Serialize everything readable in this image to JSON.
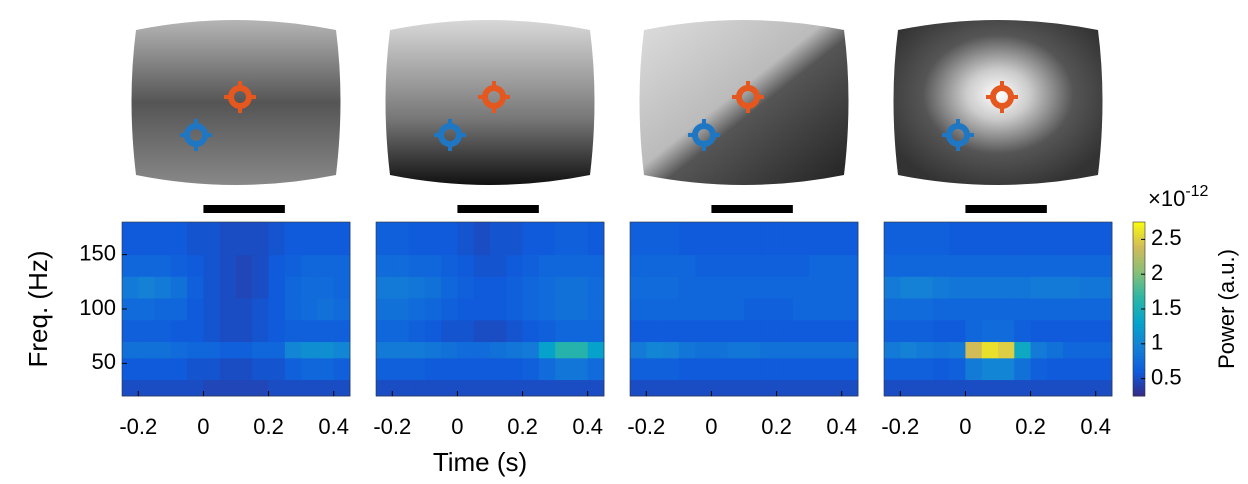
{
  "figure": {
    "xlabel": "Time (s)",
    "ylabel": "Freq. (Hz)"
  },
  "chart_data": [
    {
      "type": "heatmap",
      "xlim": [
        -0.25,
        0.45
      ],
      "ylim": [
        20,
        180
      ],
      "xticks": [
        -0.2,
        0,
        0.2,
        0.4
      ],
      "yticks": [
        50,
        100,
        150
      ],
      "x_edges": [
        -0.25,
        -0.2,
        -0.15,
        -0.1,
        -0.05,
        0,
        0.05,
        0.1,
        0.15,
        0.2,
        0.25,
        0.3,
        0.35,
        0.4,
        0.45
      ],
      "y_edges": [
        20,
        35,
        55,
        70,
        90,
        110,
        130,
        150,
        180
      ],
      "stimulus": [
        0,
        0.25
      ],
      "values": [
        [
          0.5,
          0.5,
          0.5,
          0.5,
          0.5,
          0.45,
          0.45,
          0.45,
          0.45,
          0.5,
          0.5,
          0.5,
          0.5,
          0.5
        ],
        [
          0.6,
          0.6,
          0.6,
          0.6,
          0.55,
          0.55,
          0.5,
          0.5,
          0.55,
          0.55,
          0.65,
          0.7,
          0.7,
          0.65
        ],
        [
          0.8,
          0.8,
          0.8,
          0.75,
          0.7,
          0.7,
          0.65,
          0.65,
          0.7,
          0.7,
          1.0,
          1.1,
          1.1,
          1.0
        ],
        [
          0.65,
          0.65,
          0.65,
          0.6,
          0.6,
          0.55,
          0.5,
          0.5,
          0.55,
          0.6,
          0.65,
          0.65,
          0.65,
          0.65
        ],
        [
          0.75,
          0.75,
          0.7,
          0.7,
          0.6,
          0.55,
          0.5,
          0.5,
          0.55,
          0.6,
          0.7,
          0.75,
          0.8,
          0.75
        ],
        [
          0.9,
          0.95,
          0.9,
          0.8,
          0.65,
          0.55,
          0.5,
          0.45,
          0.5,
          0.6,
          0.7,
          0.75,
          0.75,
          0.7
        ],
        [
          0.7,
          0.7,
          0.7,
          0.65,
          0.6,
          0.55,
          0.5,
          0.45,
          0.5,
          0.6,
          0.65,
          0.7,
          0.7,
          0.7
        ],
        [
          0.6,
          0.6,
          0.6,
          0.6,
          0.55,
          0.55,
          0.5,
          0.5,
          0.5,
          0.55,
          0.6,
          0.6,
          0.6,
          0.6
        ]
      ]
    },
    {
      "type": "heatmap",
      "xlim": [
        -0.25,
        0.45
      ],
      "ylim": [
        20,
        180
      ],
      "xticks": [
        -0.2,
        0,
        0.2,
        0.4
      ],
      "x_edges": [
        -0.25,
        -0.2,
        -0.15,
        -0.1,
        -0.05,
        0,
        0.05,
        0.1,
        0.15,
        0.2,
        0.25,
        0.3,
        0.35,
        0.4,
        0.45
      ],
      "y_edges": [
        20,
        35,
        55,
        70,
        90,
        110,
        130,
        150,
        180
      ],
      "stimulus": [
        0,
        0.25
      ],
      "values": [
        [
          0.5,
          0.5,
          0.5,
          0.5,
          0.5,
          0.5,
          0.5,
          0.5,
          0.5,
          0.5,
          0.5,
          0.5,
          0.5,
          0.5
        ],
        [
          0.65,
          0.65,
          0.65,
          0.6,
          0.6,
          0.6,
          0.6,
          0.6,
          0.6,
          0.65,
          0.75,
          0.85,
          0.85,
          0.75
        ],
        [
          0.9,
          0.9,
          0.9,
          0.85,
          0.8,
          0.75,
          0.75,
          0.8,
          0.85,
          0.9,
          1.3,
          1.6,
          1.6,
          1.3
        ],
        [
          0.7,
          0.7,
          0.65,
          0.6,
          0.55,
          0.55,
          0.5,
          0.5,
          0.55,
          0.6,
          0.65,
          0.7,
          0.7,
          0.7
        ],
        [
          0.8,
          0.8,
          0.75,
          0.7,
          0.65,
          0.6,
          0.6,
          0.6,
          0.65,
          0.7,
          0.75,
          0.8,
          0.8,
          0.75
        ],
        [
          0.9,
          0.9,
          0.85,
          0.8,
          0.7,
          0.65,
          0.6,
          0.6,
          0.65,
          0.7,
          0.75,
          0.8,
          0.8,
          0.75
        ],
        [
          0.75,
          0.75,
          0.7,
          0.7,
          0.65,
          0.6,
          0.55,
          0.55,
          0.6,
          0.65,
          0.7,
          0.7,
          0.7,
          0.7
        ],
        [
          0.65,
          0.65,
          0.6,
          0.6,
          0.6,
          0.55,
          0.5,
          0.55,
          0.55,
          0.6,
          0.6,
          0.65,
          0.65,
          0.6
        ]
      ]
    },
    {
      "type": "heatmap",
      "xlim": [
        -0.25,
        0.45
      ],
      "ylim": [
        20,
        180
      ],
      "xticks": [
        -0.2,
        0,
        0.2,
        0.4
      ],
      "x_edges": [
        -0.25,
        -0.2,
        -0.15,
        -0.1,
        -0.05,
        0,
        0.05,
        0.1,
        0.15,
        0.2,
        0.25,
        0.3,
        0.35,
        0.4,
        0.45
      ],
      "y_edges": [
        20,
        35,
        55,
        70,
        90,
        110,
        130,
        150,
        180
      ],
      "stimulus": [
        0,
        0.25
      ],
      "values": [
        [
          0.5,
          0.5,
          0.5,
          0.5,
          0.5,
          0.5,
          0.5,
          0.5,
          0.5,
          0.5,
          0.5,
          0.5,
          0.5,
          0.5
        ],
        [
          0.65,
          0.65,
          0.65,
          0.6,
          0.6,
          0.6,
          0.6,
          0.6,
          0.6,
          0.6,
          0.6,
          0.6,
          0.6,
          0.6
        ],
        [
          0.9,
          1.0,
          0.95,
          0.85,
          0.8,
          0.8,
          0.85,
          0.85,
          0.8,
          0.8,
          0.8,
          0.8,
          0.8,
          0.8
        ],
        [
          0.6,
          0.6,
          0.6,
          0.6,
          0.6,
          0.6,
          0.6,
          0.6,
          0.6,
          0.6,
          0.6,
          0.6,
          0.6,
          0.6
        ],
        [
          0.7,
          0.7,
          0.7,
          0.7,
          0.7,
          0.7,
          0.7,
          0.65,
          0.65,
          0.65,
          0.7,
          0.7,
          0.7,
          0.7
        ],
        [
          0.75,
          0.75,
          0.75,
          0.7,
          0.7,
          0.7,
          0.7,
          0.7,
          0.7,
          0.7,
          0.7,
          0.7,
          0.7,
          0.7
        ],
        [
          0.7,
          0.7,
          0.7,
          0.7,
          0.65,
          0.65,
          0.65,
          0.65,
          0.65,
          0.65,
          0.65,
          0.7,
          0.7,
          0.7
        ],
        [
          0.65,
          0.65,
          0.65,
          0.6,
          0.6,
          0.6,
          0.6,
          0.6,
          0.6,
          0.6,
          0.6,
          0.6,
          0.6,
          0.6
        ]
      ]
    },
    {
      "type": "heatmap",
      "xlim": [
        -0.25,
        0.45
      ],
      "ylim": [
        20,
        180
      ],
      "xticks": [
        -0.2,
        0,
        0.2,
        0.4
      ],
      "x_edges": [
        -0.25,
        -0.2,
        -0.15,
        -0.1,
        -0.05,
        0,
        0.05,
        0.1,
        0.15,
        0.2,
        0.25,
        0.3,
        0.35,
        0.4,
        0.45
      ],
      "y_edges": [
        20,
        35,
        55,
        70,
        90,
        110,
        130,
        150,
        180
      ],
      "stimulus": [
        0,
        0.25
      ],
      "zlim": [
        0.25,
        2.75
      ],
      "zticks": [
        0.5,
        1,
        1.5,
        2,
        2.5
      ],
      "colorbar_label": "Power (a.u.)",
      "colorbar_multiplier": "×10",
      "colorbar_exponent": "-12",
      "colormap": [
        "#352a87",
        "#0f5cdd",
        "#1481d6",
        "#06a4ca",
        "#2eb7a4",
        "#87bf77",
        "#d1bb59",
        "#f9fb0e"
      ],
      "values": [
        [
          0.5,
          0.5,
          0.5,
          0.5,
          0.5,
          0.5,
          0.5,
          0.5,
          0.5,
          0.5,
          0.5,
          0.5,
          0.5,
          0.5
        ],
        [
          0.65,
          0.65,
          0.65,
          0.6,
          0.65,
          0.9,
          1.0,
          1.0,
          0.8,
          0.65,
          0.6,
          0.6,
          0.6,
          0.6
        ],
        [
          0.9,
          0.95,
          0.9,
          0.85,
          0.9,
          2.4,
          2.6,
          2.5,
          1.4,
          0.9,
          0.8,
          0.7,
          0.7,
          0.7
        ],
        [
          0.65,
          0.65,
          0.65,
          0.6,
          0.6,
          0.7,
          0.75,
          0.75,
          0.65,
          0.6,
          0.6,
          0.6,
          0.6,
          0.6
        ],
        [
          0.75,
          0.75,
          0.75,
          0.7,
          0.7,
          0.7,
          0.7,
          0.7,
          0.7,
          0.7,
          0.7,
          0.7,
          0.7,
          0.7
        ],
        [
          0.9,
          0.95,
          0.95,
          0.9,
          0.85,
          0.85,
          0.85,
          0.85,
          0.85,
          0.9,
          0.9,
          0.9,
          0.85,
          0.85
        ],
        [
          0.7,
          0.7,
          0.7,
          0.7,
          0.7,
          0.7,
          0.7,
          0.7,
          0.7,
          0.7,
          0.7,
          0.7,
          0.7,
          0.7
        ],
        [
          0.65,
          0.65,
          0.65,
          0.65,
          0.6,
          0.6,
          0.6,
          0.6,
          0.6,
          0.6,
          0.6,
          0.6,
          0.6,
          0.6
        ]
      ]
    }
  ]
}
